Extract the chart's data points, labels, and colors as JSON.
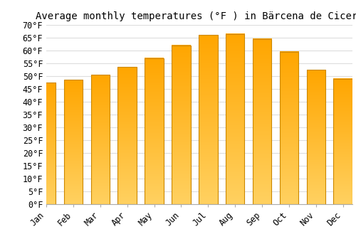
{
  "title": "Average monthly temperatures (°F ) in Bärcena de Cicero",
  "months": [
    "Jan",
    "Feb",
    "Mar",
    "Apr",
    "May",
    "Jun",
    "Jul",
    "Aug",
    "Sep",
    "Oct",
    "Nov",
    "Dec"
  ],
  "values": [
    47.5,
    48.5,
    50.5,
    53.5,
    57.0,
    62.0,
    66.0,
    66.5,
    64.5,
    59.5,
    52.5,
    49.0
  ],
  "bar_color_top": "#FFA500",
  "bar_color_bottom": "#FFD060",
  "bar_edge_color": "#CC8800",
  "background_color": "#ffffff",
  "grid_color": "#dddddd",
  "ylim": [
    0,
    70
  ],
  "ytick_step": 5,
  "title_fontsize": 10,
  "tick_fontsize": 8.5
}
